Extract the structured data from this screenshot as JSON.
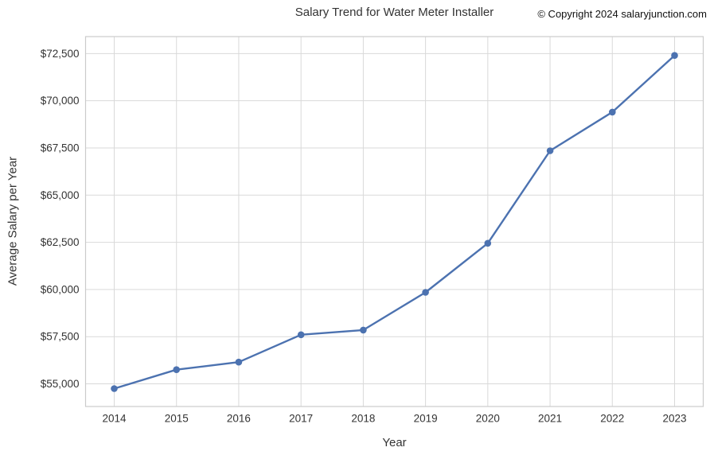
{
  "header": {
    "copyright": "© Copyright 2024 salaryjunction.com"
  },
  "chart_data": {
    "type": "line",
    "title": "Salary Trend for Water Meter Installer",
    "xlabel": "Year",
    "ylabel": "Average Salary per Year",
    "x": [
      "2014",
      "2015",
      "2016",
      "2017",
      "2018",
      "2019",
      "2020",
      "2021",
      "2022",
      "2023"
    ],
    "series": [
      {
        "name": "Average Salary per Year",
        "values": [
          54750,
          55750,
          56150,
          57600,
          57850,
          59850,
          62450,
          67350,
          69400,
          72400
        ]
      }
    ],
    "xtick_labels": [
      "2014",
      "2015",
      "2016",
      "2017",
      "2018",
      "2019",
      "2020",
      "2021",
      "2022",
      "2023"
    ],
    "yticks": [
      55000,
      57500,
      60000,
      62500,
      65000,
      67500,
      70000,
      72500
    ],
    "ytick_labels": [
      "$55,000",
      "$57,500",
      "$60,000",
      "$62,500",
      "$65,000",
      "$67,500",
      "$70,000",
      "$72,500"
    ],
    "ylim": [
      53800,
      73400
    ],
    "grid": true,
    "legend_position": "none",
    "colors": {
      "line": "#4C72B0",
      "marker": "#4C72B0",
      "grid": "#D9D9D9",
      "spine": "#CBCBCB",
      "text": "#333333",
      "background": "#FFFFFF"
    }
  }
}
